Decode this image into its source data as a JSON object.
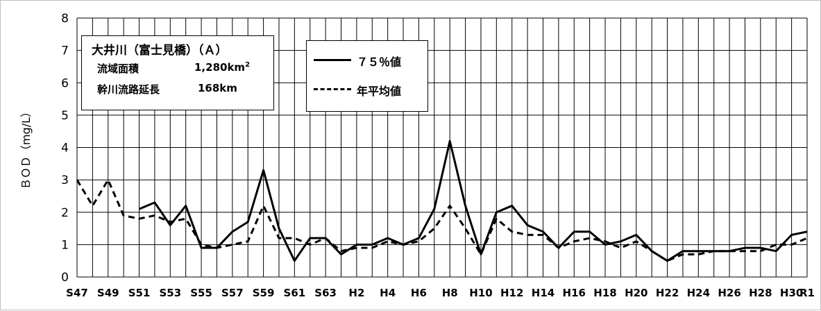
{
  "chart_data": {
    "type": "line",
    "ylabel": "ＢＯＤ（mg/L）",
    "xlabel": "",
    "ylim": [
      0,
      8
    ],
    "yticks": [
      "0",
      "1",
      "2",
      "3",
      "4",
      "5",
      "6",
      "7",
      "8"
    ],
    "grid": true,
    "x": [
      "S47",
      "S48",
      "S49",
      "S50",
      "S51",
      "S52",
      "S53",
      "S54",
      "S55",
      "S56",
      "S57",
      "S58",
      "S59",
      "S60",
      "S61",
      "S62",
      "S63",
      "H1",
      "H2",
      "H3",
      "H4",
      "H5",
      "H6",
      "H7",
      "H8",
      "H9",
      "H10",
      "H11",
      "H12",
      "H13",
      "H14",
      "H15",
      "H16",
      "H17",
      "H18",
      "H19",
      "H20",
      "H21",
      "H22",
      "H23",
      "H24",
      "H25",
      "H26",
      "H27",
      "H28",
      "H29",
      "H30",
      "R1"
    ],
    "xtick_labels": [
      "S47",
      "",
      "S49",
      "",
      "S51",
      "",
      "S53",
      "",
      "S55",
      "",
      "S57",
      "",
      "S59",
      "",
      "S61",
      "",
      "S63",
      "",
      "H2",
      "",
      "H4",
      "",
      "H6",
      "",
      "H8",
      "",
      "H10",
      "",
      "H12",
      "",
      "H14",
      "",
      "H16",
      "",
      "H18",
      "",
      "H20",
      "",
      "H22",
      "",
      "H24",
      "",
      "H26",
      "",
      "H28",
      "",
      "H30",
      "R1"
    ],
    "series": [
      {
        "name": "７５％値",
        "style": "solid",
        "values": [
          null,
          null,
          null,
          null,
          2.1,
          2.3,
          1.6,
          2.2,
          0.9,
          0.9,
          1.4,
          1.7,
          3.3,
          1.5,
          0.5,
          1.2,
          1.2,
          0.7,
          1.0,
          1.0,
          1.2,
          1.0,
          1.2,
          2.1,
          4.2,
          2.2,
          0.7,
          2.0,
          2.2,
          1.6,
          1.4,
          0.9,
          1.4,
          1.4,
          1.0,
          1.1,
          1.3,
          0.8,
          0.5,
          0.8,
          0.8,
          0.8,
          0.8,
          0.9,
          0.9,
          0.8,
          1.3,
          1.4
        ]
      },
      {
        "name": "年平均値",
        "style": "dashed",
        "values": [
          3.0,
          2.2,
          3.0,
          1.9,
          1.8,
          1.9,
          1.7,
          1.8,
          1.0,
          0.9,
          1.0,
          1.1,
          2.2,
          1.2,
          1.2,
          1.0,
          1.2,
          0.8,
          0.9,
          0.9,
          1.1,
          1.0,
          1.1,
          1.5,
          2.2,
          1.5,
          0.7,
          1.8,
          1.4,
          1.3,
          1.3,
          0.9,
          1.1,
          1.2,
          1.1,
          0.9,
          1.1,
          0.8,
          0.5,
          0.7,
          0.7,
          0.8,
          0.8,
          0.8,
          0.8,
          1.0,
          1.0,
          1.2
        ]
      }
    ],
    "legend": "top-center"
  },
  "annotation": {
    "river": "大井川（富士見橋）（Ａ）",
    "area_label": "流域面積",
    "area_value": "1,280km",
    "area_unit_sup": "2",
    "length_label": "幹川流路延長",
    "length_value": "168km"
  },
  "colors": {
    "line": "#000000",
    "grid": "#000000",
    "background": "#ffffff"
  }
}
